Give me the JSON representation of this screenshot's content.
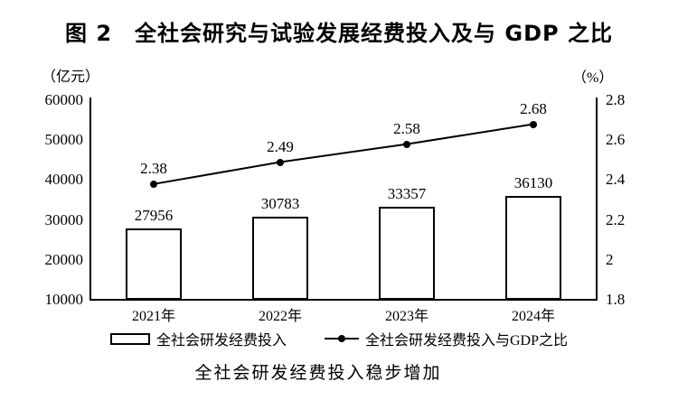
{
  "title": "图 2　全社会研究与试验发展经费投入及与 GDP 之比",
  "caption": "全社会研发经费投入稳步增加",
  "legend": {
    "bar_label": "全社会研发经费投入",
    "line_label": "全社会研发经费投入与GDP之比"
  },
  "colors": {
    "ink": "#000000",
    "background": "#ffffff"
  },
  "chart_data": {
    "type": "bar",
    "subtype": "bar-line-combo",
    "title": "图 2　全社会研究与试验发展经费投入及与 GDP 之比",
    "categories": [
      "2021年",
      "2022年",
      "2023年",
      "2024年"
    ],
    "series": [
      {
        "name": "全社会研发经费投入",
        "type": "bar",
        "axis": "left",
        "values": [
          27956,
          30783,
          33357,
          36130
        ],
        "value_labels": [
          "27956",
          "30783",
          "33357",
          "36130"
        ]
      },
      {
        "name": "全社会研发经费投入与GDP之比",
        "type": "line",
        "axis": "right",
        "values": [
          2.38,
          2.49,
          2.58,
          2.68
        ],
        "value_labels": [
          "2.38",
          "2.49",
          "2.58",
          "2.68"
        ]
      }
    ],
    "left_axis": {
      "unit": "（亿元）",
      "min": 10000,
      "max": 60000,
      "ticks": [
        10000,
        20000,
        30000,
        40000,
        50000,
        60000
      ],
      "tick_labels": [
        "10000",
        "20000",
        "30000",
        "40000",
        "50000",
        "60000"
      ]
    },
    "right_axis": {
      "unit": "（%）",
      "min": 1.8,
      "max": 2.8,
      "ticks": [
        1.8,
        2.0,
        2.2,
        2.4,
        2.6,
        2.8
      ],
      "tick_labels": [
        "1.8",
        "2",
        "2.2",
        "2.4",
        "2.6",
        "2.8"
      ]
    },
    "grid": false,
    "legend_position": "bottom"
  }
}
